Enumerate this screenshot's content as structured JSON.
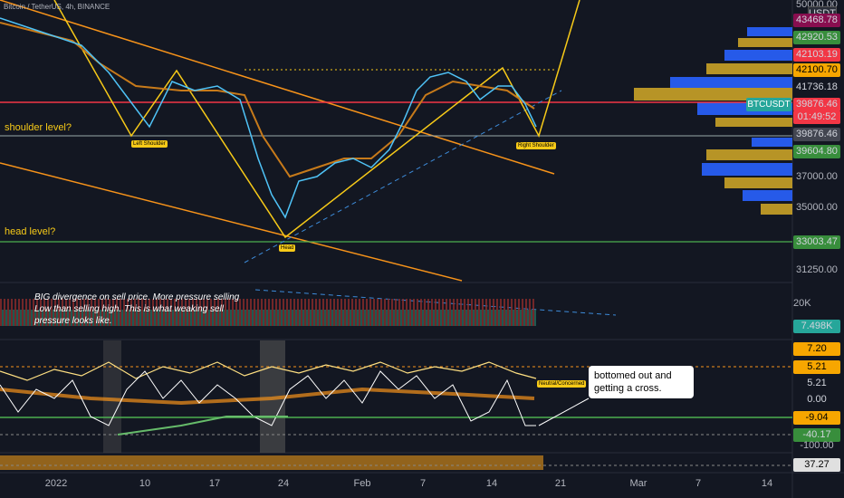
{
  "header": {
    "title": "Bitcoin / TetherUS, 4h, BINANCE"
  },
  "price_axis": {
    "unit": "USDT",
    "symbol": "BTCUSDT",
    "countdown": "01:49:52",
    "labels": [
      "50000.00",
      "43468.78",
      "42920.53",
      "42103.19",
      "42100.70",
      "41736.18",
      "39876.46",
      "39876.46",
      "39604.80",
      "37000.00",
      "35000.00",
      "33003.47",
      "31250.00"
    ]
  },
  "volume_axis": {
    "labels": [
      "20K",
      "7.498K"
    ]
  },
  "oscillator_axis": {
    "labels": [
      "7.20",
      "5.21",
      "5.21",
      "0.00",
      "-9.04",
      "-40.17",
      "-100.00"
    ]
  },
  "strip_axis": {
    "labels": [
      "37.27"
    ]
  },
  "time_axis": {
    "labels": [
      "2022",
      "10",
      "17",
      "24",
      "Feb",
      "7",
      "14",
      "21",
      "Mar",
      "7",
      "14"
    ]
  },
  "annotations": {
    "shoulder_level": "shoulder level?",
    "head_level": "head level?",
    "left_shoulder": "Left Shoulder",
    "head": "Head",
    "right_shoulder": "Right Shoulder",
    "divergence": [
      "BIG divergence on sell price. More pressure selling",
      "Low than selling high. This is what weaking sell",
      "pressure looks like."
    ],
    "callout": [
      "bottomed out and",
      "getting a cross."
    ],
    "status": "Neutral/Concerned"
  }
}
